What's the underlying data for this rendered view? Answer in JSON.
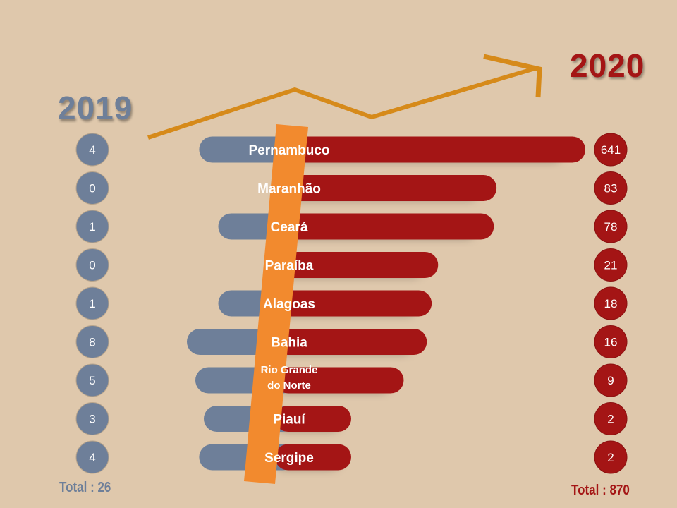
{
  "chart_data": {
    "type": "bar",
    "categories": [
      "Pernambuco",
      "Maranhão",
      "Ceará",
      "Paraíba",
      "Alagoas",
      "Bahia",
      "Rio Grande do Norte",
      "Piauí",
      "Sergipe"
    ],
    "category_lines": [
      [
        "Pernambuco"
      ],
      [
        "Maranhão"
      ],
      [
        "Ceará"
      ],
      [
        "Paraíba"
      ],
      [
        "Alagoas"
      ],
      [
        "Bahia"
      ],
      [
        "Rio Grande",
        "do Norte"
      ],
      [
        "Piauí"
      ],
      [
        "Sergipe"
      ]
    ],
    "series": [
      {
        "name": "2019",
        "values": [
          4,
          0,
          1,
          0,
          1,
          8,
          5,
          3,
          4
        ],
        "color": "#6e7f99"
      },
      {
        "name": "2020",
        "values": [
          641,
          83,
          78,
          21,
          18,
          16,
          9,
          2,
          2
        ],
        "color": "#a41515"
      }
    ],
    "totals": {
      "left": "Total : 26",
      "right": "Total : 870"
    },
    "title_left": "2019",
    "title_right": "2020"
  },
  "colors": {
    "background": "#dfc8ac",
    "series_2019": "#6e7f99",
    "series_2020": "#a41515",
    "trend_arrow": "#d68a1a",
    "divider_band": "#f28a2e"
  }
}
